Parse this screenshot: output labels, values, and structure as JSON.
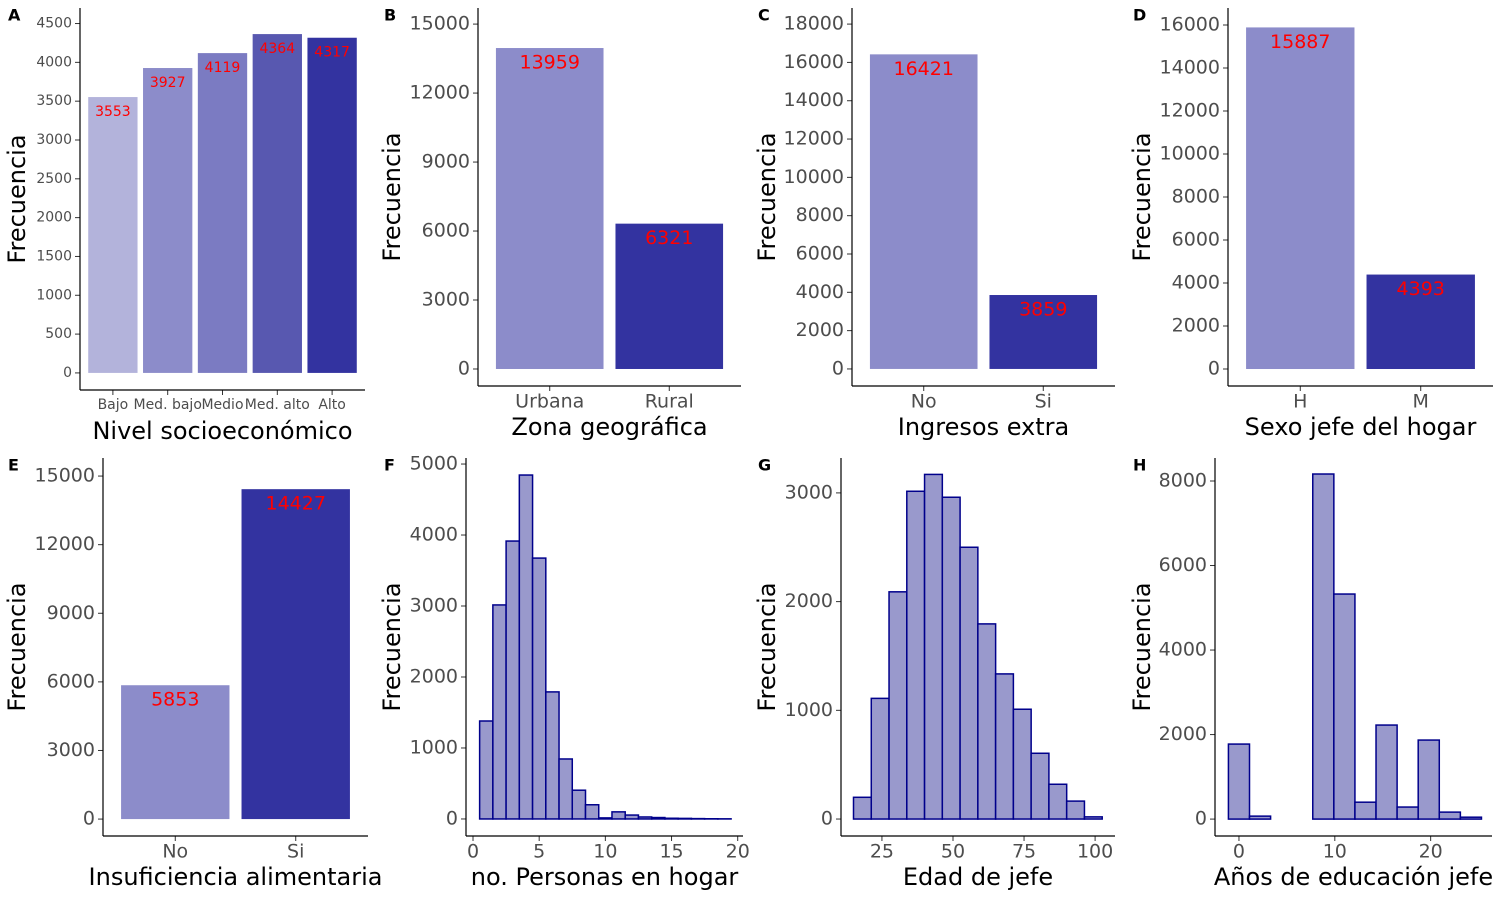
{
  "chart_data": [
    {
      "type": "bar",
      "label": "A",
      "xlabel": "Nivel socioeconómico",
      "ylabel": "Frecuencia",
      "categories": [
        "Bajo",
        "Med. bajo",
        "Medio",
        "Med. alto",
        "Alto"
      ],
      "values": [
        3553,
        3927,
        4119,
        4364,
        4317
      ],
      "colors": [
        "#b3b3db",
        "#8c8cca",
        "#7b7bc2",
        "#5858b0",
        "#3333a0"
      ],
      "value_label_color": "#ff0000",
      "ylim": [
        -220,
        4700
      ],
      "yticks": [
        0,
        500,
        1000,
        1500,
        2000,
        2500,
        3000,
        3500,
        4000,
        4500
      ]
    },
    {
      "type": "bar",
      "label": "B",
      "xlabel": "Zona geográfica",
      "ylabel": "Frecuencia",
      "categories": [
        "Urbana",
        "Rural"
      ],
      "values": [
        13959,
        6321
      ],
      "colors": [
        "#8c8cca",
        "#3333a0"
      ],
      "value_label_color": "#ff0000",
      "ylim": [
        -740,
        15700
      ],
      "yticks": [
        0,
        3000,
        6000,
        9000,
        12000,
        15000
      ]
    },
    {
      "type": "bar",
      "label": "C",
      "xlabel": "Ingresos extra",
      "ylabel": "Frecuencia",
      "categories": [
        "No",
        "Si"
      ],
      "values": [
        16421,
        3859
      ],
      "colors": [
        "#8c8cca",
        "#3333a0"
      ],
      "value_label_color": "#ff0000",
      "ylim": [
        -890,
        18840
      ],
      "yticks": [
        0,
        2000,
        4000,
        6000,
        8000,
        10000,
        12000,
        14000,
        16000,
        18000
      ]
    },
    {
      "type": "bar",
      "label": "D",
      "xlabel": "Sexo jefe del hogar",
      "ylabel": "Frecuencia",
      "categories": [
        "H",
        "M"
      ],
      "values": [
        15887,
        4393
      ],
      "colors": [
        "#8c8cca",
        "#3333a0"
      ],
      "value_label_color": "#ff0000",
      "ylim": [
        -790,
        16790
      ],
      "yticks": [
        0,
        2000,
        4000,
        6000,
        8000,
        10000,
        12000,
        14000,
        16000
      ]
    },
    {
      "type": "bar",
      "label": "E",
      "xlabel": "Insuficiencia alimentaria",
      "ylabel": "Frecuencia",
      "categories": [
        "No",
        "Si"
      ],
      "values": [
        5853,
        14427
      ],
      "colors": [
        "#8c8cca",
        "#3333a0"
      ],
      "value_label_color": "#ff0000",
      "ylim": [
        -740,
        15790
      ],
      "yticks": [
        0,
        3000,
        6000,
        9000,
        12000,
        15000
      ]
    },
    {
      "type": "histogram",
      "label": "F",
      "xlabel": "no. Personas en hogar",
      "ylabel": "Frecuencia",
      "bins": [
        0.5,
        1.5,
        2.5,
        3.5,
        4.5,
        5.5,
        6.5,
        7.5,
        8.5,
        9.5,
        10.5,
        11.5,
        12.5,
        13.5,
        14.5,
        15.5,
        16.5,
        17.5,
        18.5,
        19.5
      ],
      "values": [
        1380,
        3015,
        3915,
        4845,
        3675,
        1790,
        845,
        405,
        200,
        15,
        100,
        55,
        28,
        20,
        10,
        8,
        5,
        3,
        2
      ],
      "color": "#9999cc",
      "edgecolor": "#00008b",
      "xlim": [
        -0.53,
        20.4
      ],
      "xticks": [
        0,
        5,
        10,
        15,
        20
      ],
      "ylim": [
        -240,
        5085
      ],
      "yticks": [
        0,
        1000,
        2000,
        3000,
        4000,
        5000
      ]
    },
    {
      "type": "histogram",
      "label": "G",
      "xlabel": "Edad de jefe",
      "ylabel": "Frecuencia",
      "bins": [
        15,
        21.25,
        27.5,
        33.75,
        40,
        46.25,
        52.5,
        58.75,
        65,
        71.25,
        77.5,
        83.75,
        90,
        96.25,
        102.5
      ],
      "values": [
        200,
        1110,
        2090,
        3015,
        3170,
        2960,
        2500,
        1795,
        1335,
        1010,
        605,
        320,
        165,
        20
      ],
      "color": "#9999cc",
      "edgecolor": "#00008b",
      "xlim": [
        10.6,
        107
      ],
      "xticks": [
        25,
        50,
        75,
        100
      ],
      "ylim": [
        -156,
        3321
      ],
      "yticks": [
        0,
        1000,
        2000,
        3000
      ]
    },
    {
      "type": "histogram",
      "label": "H",
      "xlabel": "Años de educación jefe",
      "ylabel": "Frecuencia",
      "bins": [
        -1.1,
        1.1,
        3.3,
        5.5,
        7.7,
        9.9,
        12.1,
        14.3,
        16.5,
        18.7,
        20.9,
        23.1,
        25.3
      ],
      "values": [
        1775,
        70,
        0,
        0,
        8165,
        5325,
        400,
        2225,
        285,
        1870,
        165,
        45
      ],
      "color": "#9999cc",
      "edgecolor": "#00008b",
      "xlim": [
        -2.5,
        26.4
      ],
      "xticks": [
        0,
        10,
        20
      ],
      "ylim": [
        -400,
        8544
      ],
      "yticks": [
        0,
        2000,
        4000,
        6000,
        8000
      ]
    }
  ]
}
